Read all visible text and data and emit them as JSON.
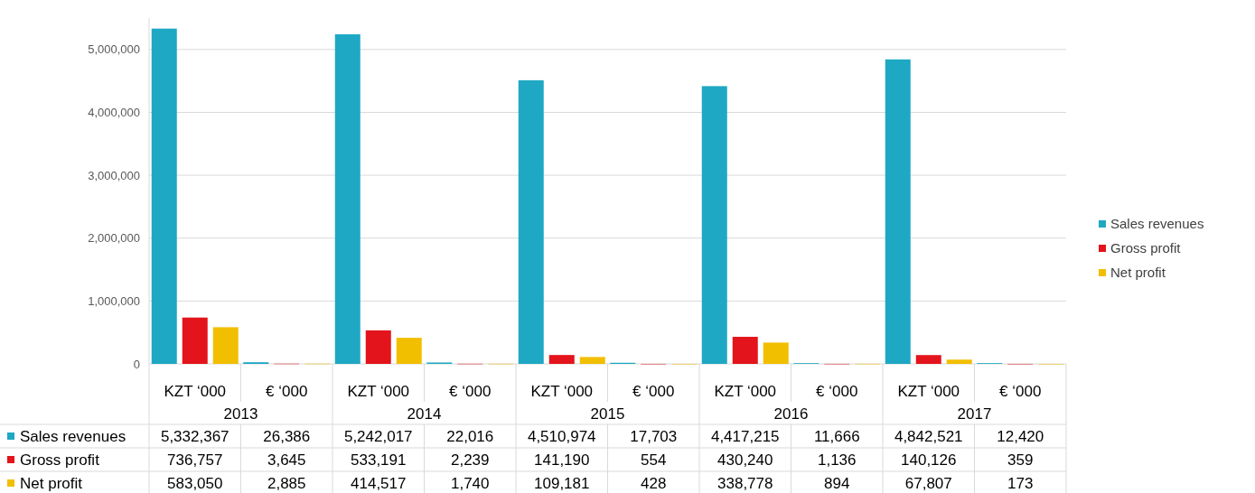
{
  "chart_data": {
    "type": "bar",
    "categories": [
      "KZT ‘000",
      "€ ‘000",
      "KZT ‘000",
      "€ ‘000",
      "KZT ‘000",
      "€ ‘000",
      "KZT ‘000",
      "€ ‘000",
      "KZT ‘000",
      "€ ‘000"
    ],
    "series": [
      {
        "name": "Sales revenues",
        "color": "#1ea8c4",
        "values": [
          5332367,
          26386,
          5242017,
          22016,
          4510974,
          17703,
          4417215,
          11666,
          4842521,
          12420
        ],
        "value_labels": [
          "5,332,367",
          "26,386",
          "5,242,017",
          "22,016",
          "4,510,974",
          "17,703",
          "4,417,215",
          "11,666",
          "4,842,521",
          "12,420"
        ]
      },
      {
        "name": "Gross profit",
        "color": "#e3141b",
        "values": [
          736757,
          3645,
          533191,
          2239,
          141190,
          554,
          430240,
          1136,
          140126,
          359
        ],
        "value_labels": [
          "736,757",
          "3,645",
          "533,191",
          "2,239",
          "141,190",
          "554",
          "430,240",
          "1,136",
          "140,126",
          "359"
        ]
      },
      {
        "name": "Net profit",
        "color": "#f2be00",
        "values": [
          583050,
          2885,
          414517,
          1740,
          109181,
          428,
          338778,
          894,
          67807,
          173
        ],
        "value_labels": [
          "583,050",
          "2,885",
          "414,517",
          "1,740",
          "109,181",
          "428",
          "338,778",
          "894",
          "67,807",
          "173"
        ]
      }
    ],
    "annotations": [
      "2013",
      "2014",
      "2015",
      "2016",
      "2017"
    ],
    "ylim": [
      0,
      5500000
    ],
    "yticks": [
      {
        "value": 0,
        "label": "0"
      },
      {
        "value": 1000000,
        "label": "1,000,000"
      },
      {
        "value": 2000000,
        "label": "2,000,000"
      },
      {
        "value": 3000000,
        "label": "3,000,000"
      },
      {
        "value": 4000000,
        "label": "4,000,000"
      },
      {
        "value": 5000000,
        "label": "5,000,000"
      }
    ],
    "grid": "y",
    "legend": "right"
  }
}
